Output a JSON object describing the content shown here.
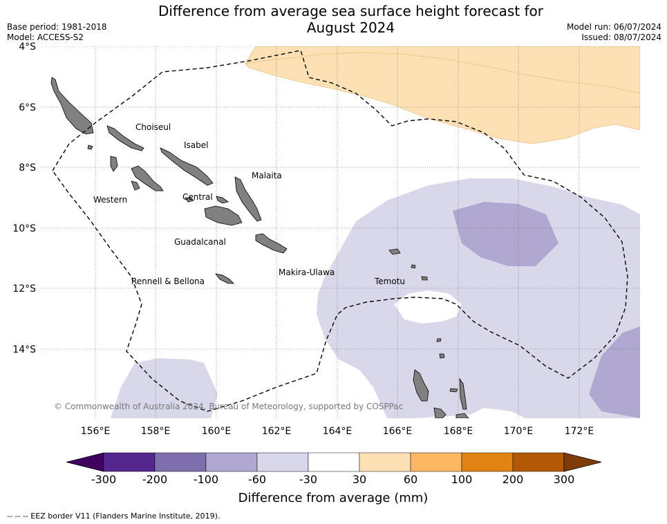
{
  "title_line1": "Difference from average sea surface height forecast for",
  "title_line2": "August 2024",
  "base_period": "Base period: 1981-2018",
  "model": "Model: ACCESS-S2",
  "model_run": "Model run: 06/07/2024",
  "issued": "Issued: 08/07/2024",
  "copyright": "© Commonwealth of Australia 2024, Bureau of Meteorology, supported by COSPPac",
  "colorbar": {
    "label": "Difference from average (mm)",
    "ticks": [
      "-300",
      "-200",
      "-100",
      "-60",
      "-30",
      "30",
      "60",
      "100",
      "200",
      "300"
    ],
    "colors": [
      "#54278f",
      "#7f6fae",
      "#b0a8d1",
      "#d8d8ea",
      "#ffffff",
      "#fde0b4",
      "#fbb862",
      "#e08214",
      "#b35806"
    ],
    "under_color": "#3f0060",
    "over_color": "#7f3b08"
  },
  "map": {
    "lon_labels": [
      "156°E",
      "158°E",
      "160°E",
      "162°E",
      "164°E",
      "166°E",
      "168°E",
      "170°E",
      "172°E"
    ],
    "lat_labels": [
      "4°S",
      "6°S",
      "8°S",
      "10°S",
      "12°S",
      "14°S"
    ],
    "provinces": [
      "Choiseul",
      "Isabel",
      "Malaita",
      "Western",
      "Central",
      "Guadalcanal",
      "Makira-Ulawa",
      "Temotu",
      "Rennell & Bellona"
    ]
  },
  "footer": "-- -- -- EEZ border V11 (Flanders Marine Institute, 2019)."
}
